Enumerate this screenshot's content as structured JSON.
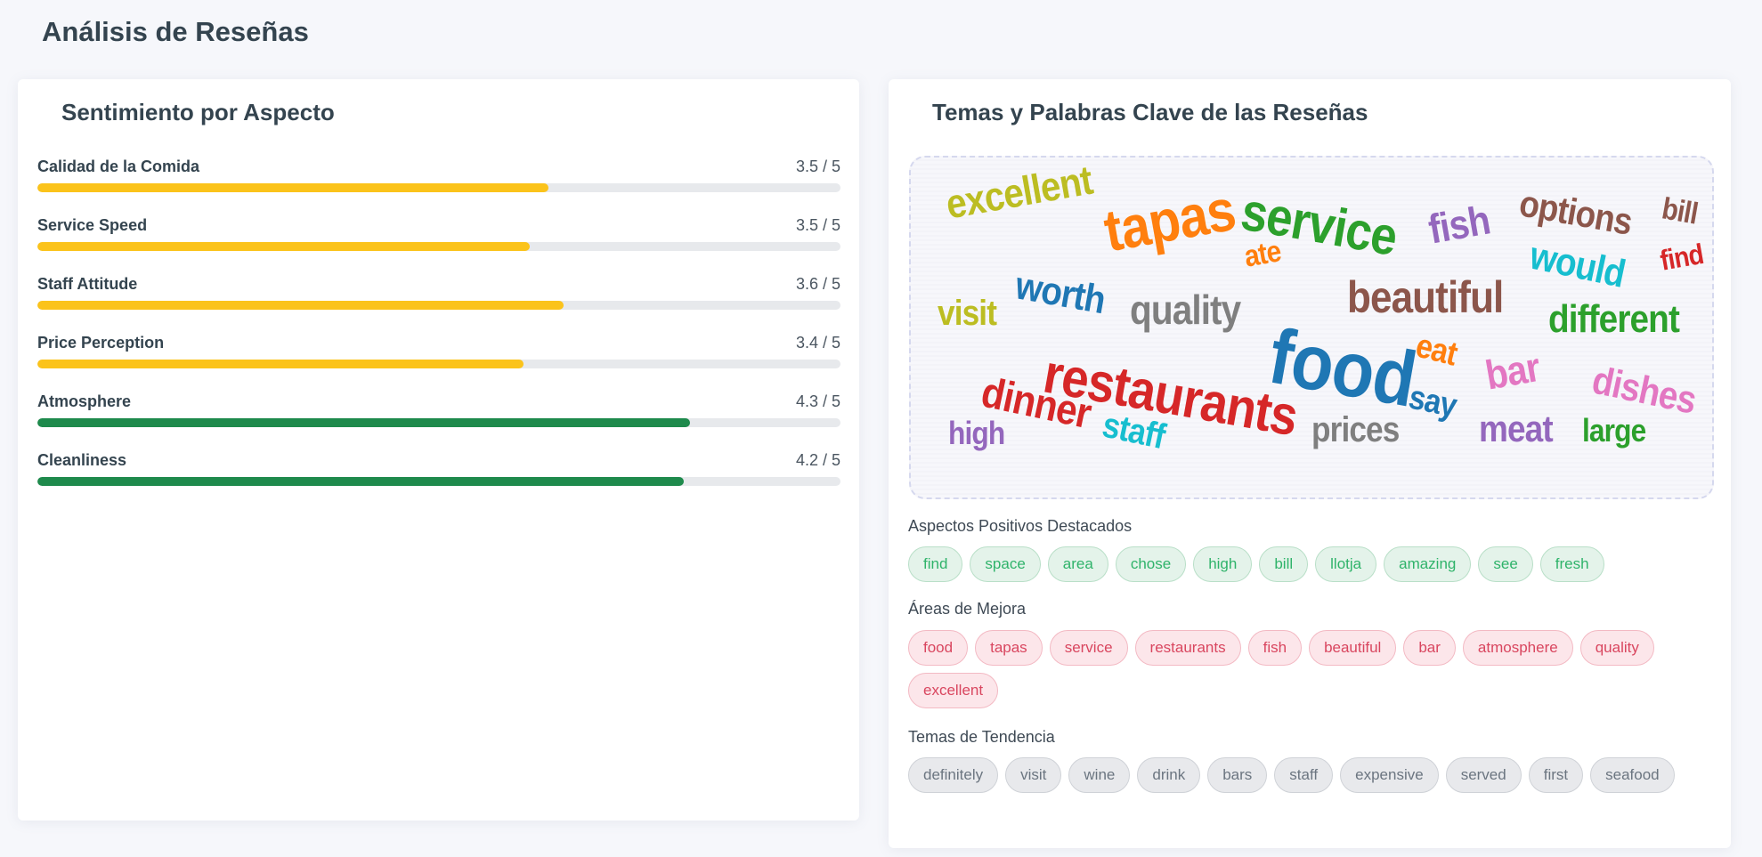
{
  "page": {
    "title": "Análisis de Reseñas"
  },
  "sentiment": {
    "title": "Sentimiento por Aspecto",
    "aspects": [
      {
        "name": "Calidad de la Comida",
        "score": "3.5 / 5",
        "level": 0.636,
        "color": "#fbc31b"
      },
      {
        "name": "Service Speed",
        "score": "3.5 / 5",
        "level": 0.613,
        "color": "#fbc31b"
      },
      {
        "name": "Staff Attitude",
        "score": "3.6 / 5",
        "level": 0.655,
        "color": "#fbc31b"
      },
      {
        "name": "Price Perception",
        "score": "3.4 / 5",
        "level": 0.605,
        "color": "#fbc31b"
      },
      {
        "name": "Atmosphere",
        "score": "4.3 / 5",
        "level": 0.813,
        "color": "#1e8a4c"
      },
      {
        "name": "Cleanliness",
        "score": "4.2 / 5",
        "level": 0.805,
        "color": "#1e8a4c"
      }
    ]
  },
  "topics": {
    "title": "Temas y Palabras Clave de las Reseñas",
    "wordcloud": [
      {
        "text": "excellent",
        "color": "#bcbd22"
      },
      {
        "text": "tapas",
        "color": "#ff7f0e"
      },
      {
        "text": "service",
        "color": "#2ca02c"
      },
      {
        "text": "fish",
        "color": "#9467bd"
      },
      {
        "text": "options",
        "color": "#8c564b"
      },
      {
        "text": "bill",
        "color": "#8c564b"
      },
      {
        "text": "ate",
        "color": "#ff7f0e"
      },
      {
        "text": "would",
        "color": "#17becf"
      },
      {
        "text": "find",
        "color": "#d62728"
      },
      {
        "text": "worth",
        "color": "#1f77b4"
      },
      {
        "text": "visit",
        "color": "#bcbd22"
      },
      {
        "text": "quality",
        "color": "#7f7f7f"
      },
      {
        "text": "beautiful",
        "color": "#8c564b"
      },
      {
        "text": "different",
        "color": "#2ca02c"
      },
      {
        "text": "eat",
        "color": "#ff7f0e"
      },
      {
        "text": "food",
        "color": "#1f77b4"
      },
      {
        "text": "restaurants",
        "color": "#d62728"
      },
      {
        "text": "dinner",
        "color": "#d62728"
      },
      {
        "text": "bar",
        "color": "#e377c2"
      },
      {
        "text": "dishes",
        "color": "#e377c2"
      },
      {
        "text": "say",
        "color": "#1f77b4"
      },
      {
        "text": "staff",
        "color": "#17becf"
      },
      {
        "text": "high",
        "color": "#9467bd"
      },
      {
        "text": "prices",
        "color": "#7f7f7f"
      },
      {
        "text": "meat",
        "color": "#9467bd"
      },
      {
        "text": "large",
        "color": "#2ca02c"
      }
    ],
    "positive_label": "Aspectos Positivos Destacados",
    "positive": [
      "find",
      "space",
      "area",
      "chose",
      "high",
      "bill",
      "llotja",
      "amazing",
      "see",
      "fresh"
    ],
    "improve_label": "Áreas de Mejora",
    "improve": [
      "food",
      "tapas",
      "service",
      "restaurants",
      "fish",
      "beautiful",
      "bar",
      "atmosphere",
      "quality",
      "excellent"
    ],
    "trend_label": "Temas de Tendencia",
    "trend": [
      "definitely",
      "visit",
      "wine",
      "drink",
      "bars",
      "staff",
      "expensive",
      "served",
      "first",
      "seafood"
    ]
  }
}
